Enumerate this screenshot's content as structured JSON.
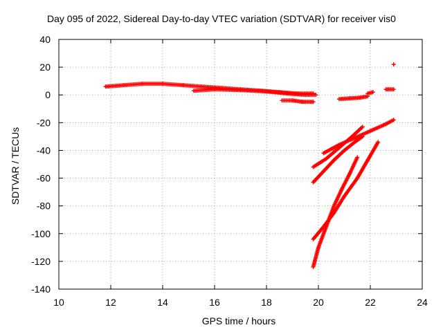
{
  "chart_data": {
    "type": "scatter",
    "title": "Day 095 of 2022, Sidereal Day-to-day VTEC variation (SDTVAR) for receiver vis0",
    "xlabel": "GPS time / hours",
    "ylabel": "SDTVAR / TECUs",
    "xlim": [
      10,
      24
    ],
    "ylim": [
      -140,
      40
    ],
    "xticks": [
      10,
      12,
      14,
      16,
      18,
      20,
      22,
      24
    ],
    "yticks": [
      -140,
      -120,
      -100,
      -80,
      -60,
      -40,
      -20,
      0,
      20,
      40
    ],
    "grid": true,
    "marker": "+",
    "color": "#ff0000",
    "series": [
      {
        "segments": [
          {
            "x": [
              11.8,
              12.5,
              13.2,
              14.0,
              14.8,
              15.5,
              16.3,
              17.0,
              17.8,
              18.5,
              19.2,
              19.8
            ],
            "y": [
              6,
              7,
              8,
              8,
              7,
              6,
              5,
              4,
              3,
              2,
              1,
              1
            ]
          },
          {
            "x": [
              15.2,
              16.0,
              17.0,
              18.0,
              18.8,
              19.5,
              19.9
            ],
            "y": [
              3,
              4,
              3.5,
              2.5,
              1,
              0,
              0
            ]
          },
          {
            "x": [
              18.6,
              19.0,
              19.4,
              19.8
            ],
            "y": [
              -4,
              -4,
              -5,
              -5
            ]
          },
          {
            "x": [
              20.8,
              21.2,
              21.6,
              21.9
            ],
            "y": [
              -3,
              -2.5,
              -2,
              -1
            ]
          },
          {
            "x": [
              21.9,
              22.1
            ],
            "y": [
              1,
              2
            ]
          },
          {
            "x": [
              22.6,
              22.9
            ],
            "y": [
              4,
              4
            ]
          },
          {
            "x": [
              22.9
            ],
            "y": [
              22
            ]
          },
          {
            "x": [
              19.8,
              20.3,
              20.8,
              21.3,
              21.7
            ],
            "y": [
              -52,
              -46,
              -38,
              -30,
              -23
            ]
          },
          {
            "x": [
              20.2,
              20.8,
              21.4,
              22.0,
              22.6,
              22.9
            ],
            "y": [
              -42,
              -36,
              -31,
              -26,
              -21,
              -18
            ]
          },
          {
            "x": [
              19.8,
              20.2,
              20.6,
              21.0,
              21.4,
              21.7
            ],
            "y": [
              -63,
              -55,
              -47,
              -40,
              -34,
              -30
            ]
          },
          {
            "x": [
              19.8,
              20.2,
              20.6,
              21.0,
              21.5,
              21.9,
              22.3
            ],
            "y": [
              -104,
              -95,
              -85,
              -73,
              -60,
              -47,
              -34
            ]
          },
          {
            "x": [
              19.8,
              20.0,
              20.3,
              20.6,
              20.9,
              21.2,
              21.5
            ],
            "y": [
              -124,
              -110,
              -95,
              -80,
              -68,
              -57,
              -45
            ]
          }
        ]
      }
    ]
  }
}
